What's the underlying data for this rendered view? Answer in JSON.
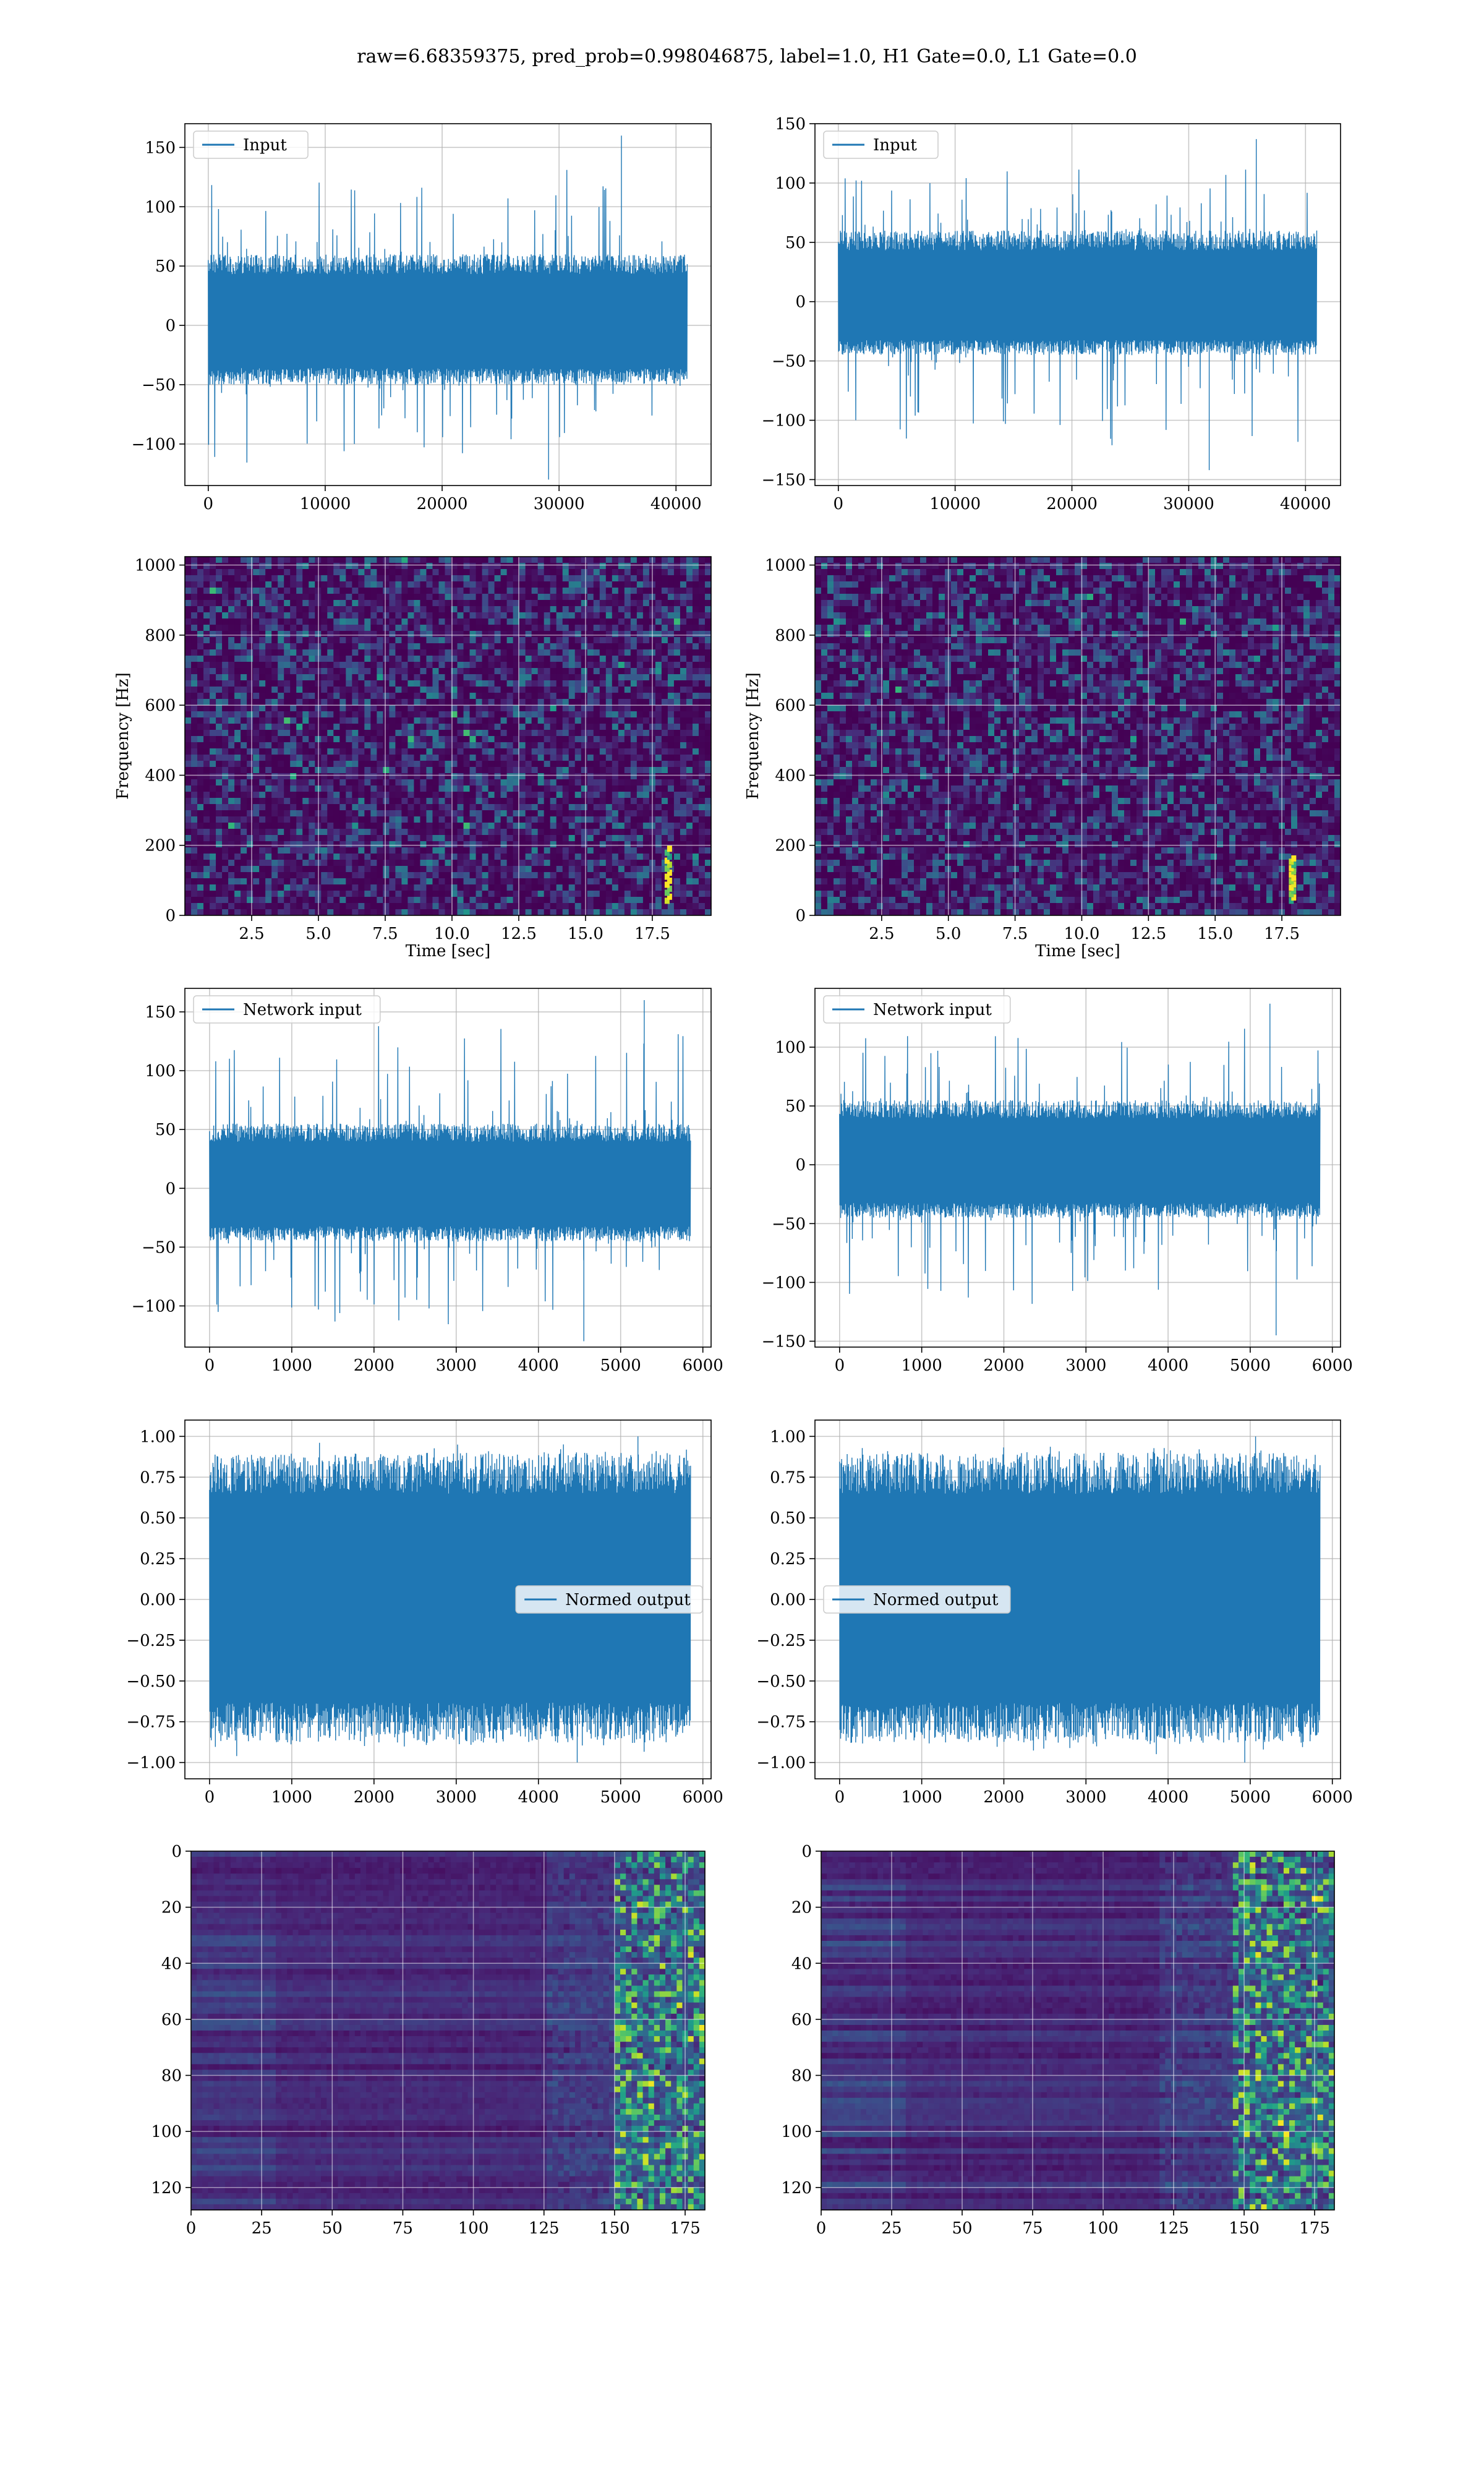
{
  "figure": {
    "title": "raw=6.68359375, pred_prob=0.998046875, label=1.0, H1 Gate=0.0, L1 Gate=0.0",
    "line_color": "#1f77b4",
    "grid_color": "#b0b0b0"
  },
  "chart_data": [
    {
      "id": "input_h",
      "type": "line",
      "legend": "Input",
      "legend_pos": "upper-left",
      "xlim": [
        -2000,
        43000
      ],
      "ylim": [
        -135,
        170
      ],
      "xticks": [
        0,
        10000,
        20000,
        30000,
        40000
      ],
      "yticks": [
        -100,
        -50,
        0,
        50,
        100,
        150
      ],
      "x_start": 0,
      "x_end": 40960,
      "y_range": [
        -130,
        160
      ],
      "envelope": [
        -50,
        60
      ]
    },
    {
      "id": "input_l",
      "type": "line",
      "legend": "Input",
      "legend_pos": "upper-left",
      "xlim": [
        -2000,
        43000
      ],
      "ylim": [
        -155,
        150
      ],
      "xticks": [
        0,
        10000,
        20000,
        30000,
        40000
      ],
      "yticks": [
        -150,
        -100,
        -50,
        0,
        50,
        100,
        150
      ],
      "x_start": 0,
      "x_end": 40960,
      "y_range": [
        -142,
        137
      ],
      "envelope": [
        -45,
        60
      ]
    },
    {
      "id": "spec_h",
      "type": "heatmap",
      "xlim": [
        0,
        19.7
      ],
      "ylim": [
        0,
        1024
      ],
      "xticks": [
        2.5,
        5.0,
        7.5,
        10.0,
        12.5,
        15.0,
        17.5
      ],
      "yticks": [
        0,
        200,
        400,
        600,
        800,
        1000
      ],
      "xlabel": "Time [sec]",
      "ylabel": "Frequency [Hz]",
      "colormap": "viridis",
      "chirp": {
        "x": 18.1,
        "f_from": 40,
        "f_to": 200
      }
    },
    {
      "id": "spec_l",
      "type": "heatmap",
      "xlim": [
        0,
        19.7
      ],
      "ylim": [
        0,
        1024
      ],
      "xticks": [
        2.5,
        5.0,
        7.5,
        10.0,
        12.5,
        15.0,
        17.5
      ],
      "yticks": [
        0,
        200,
        400,
        600,
        800,
        1000
      ],
      "xlabel": "Time [sec]",
      "ylabel": "Frequency [Hz]",
      "colormap": "viridis",
      "chirp": {
        "x": 17.9,
        "f_from": 40,
        "f_to": 170
      }
    },
    {
      "id": "net_h",
      "type": "line",
      "legend": "Network input",
      "legend_pos": "upper-left",
      "xlim": [
        -300,
        6100
      ],
      "ylim": [
        -135,
        170
      ],
      "xticks": [
        0,
        1000,
        2000,
        3000,
        4000,
        5000,
        6000
      ],
      "yticks": [
        -100,
        -50,
        0,
        50,
        100,
        150
      ],
      "x_start": 0,
      "x_end": 5850,
      "y_range": [
        -130,
        160
      ],
      "envelope": [
        -45,
        55
      ]
    },
    {
      "id": "net_l",
      "type": "line",
      "legend": "Network input",
      "legend_pos": "upper-left",
      "xlim": [
        -300,
        6100
      ],
      "ylim": [
        -155,
        150
      ],
      "xticks": [
        0,
        1000,
        2000,
        3000,
        4000,
        5000,
        6000
      ],
      "yticks": [
        -150,
        -100,
        -50,
        0,
        50,
        100
      ],
      "x_start": 0,
      "x_end": 5850,
      "y_range": [
        -145,
        137
      ],
      "envelope": [
        -45,
        55
      ]
    },
    {
      "id": "norm_h",
      "type": "line",
      "legend": "Normed output",
      "legend_pos": "center-right",
      "xlim": [
        -300,
        6100
      ],
      "ylim": [
        -1.1,
        1.1
      ],
      "xticks": [
        0,
        1000,
        2000,
        3000,
        4000,
        5000,
        6000
      ],
      "yticks": [
        -1.0,
        -0.75,
        -0.5,
        -0.25,
        0.0,
        0.25,
        0.5,
        0.75,
        1.0
      ],
      "x_start": 0,
      "x_end": 5850,
      "y_range": [
        -1.0,
        1.0
      ],
      "envelope": [
        -0.88,
        0.9
      ]
    },
    {
      "id": "norm_l",
      "type": "line",
      "legend": "Normed output",
      "legend_pos": "center-left",
      "xlim": [
        -300,
        6100
      ],
      "ylim": [
        -1.1,
        1.1
      ],
      "xticks": [
        0,
        1000,
        2000,
        3000,
        4000,
        5000,
        6000
      ],
      "yticks": [
        -1.0,
        -0.75,
        -0.5,
        -0.25,
        0.0,
        0.25,
        0.5,
        0.75,
        1.0
      ],
      "x_start": 0,
      "x_end": 5850,
      "y_range": [
        -1.0,
        1.0
      ],
      "envelope": [
        -0.88,
        0.9
      ]
    },
    {
      "id": "feat_h",
      "type": "heatmap",
      "xlim": [
        0,
        182
      ],
      "ylim": [
        128,
        0
      ],
      "xticks": [
        0,
        25,
        50,
        75,
        100,
        125,
        150,
        175
      ],
      "yticks": [
        0,
        20,
        40,
        60,
        80,
        100,
        120
      ],
      "colormap": "viridis",
      "active_from": 150
    },
    {
      "id": "feat_l",
      "type": "heatmap",
      "xlim": [
        0,
        182
      ],
      "ylim": [
        128,
        0
      ],
      "xticks": [
        0,
        25,
        50,
        75,
        100,
        125,
        150,
        175
      ],
      "yticks": [
        0,
        20,
        40,
        60,
        80,
        100,
        120
      ],
      "colormap": "viridis",
      "active_from": 145
    }
  ]
}
